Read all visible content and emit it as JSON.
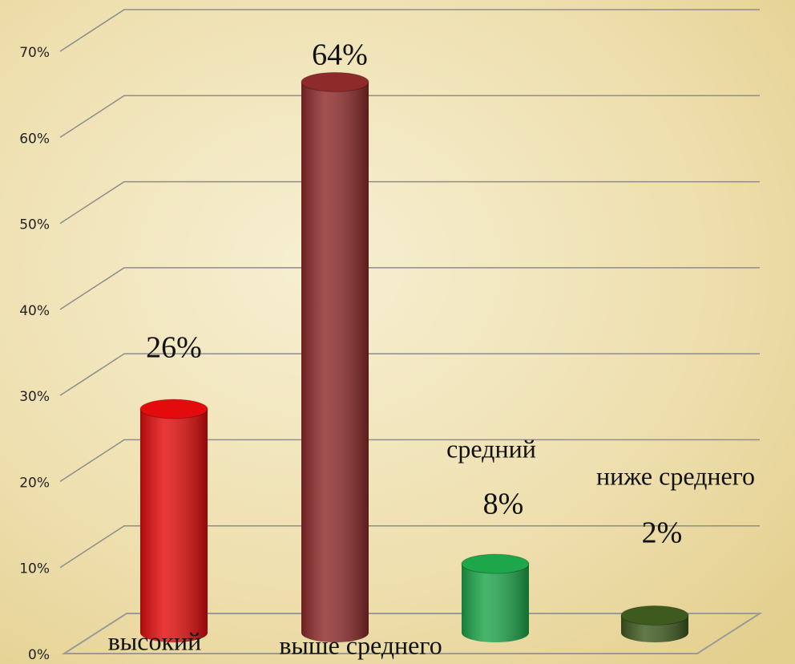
{
  "chart_data": {
    "type": "bar3d",
    "categories": [
      "высокий",
      "выше среднего",
      "средний",
      "ниже среднего"
    ],
    "values": [
      26,
      64,
      8,
      2
    ],
    "value_labels": [
      "26%",
      "64%",
      "8%",
      "2%"
    ],
    "colors": [
      "#e30b0b",
      "#8e2a2a",
      "#1da64a",
      "#3f5a1f"
    ],
    "ylim": [
      0,
      70
    ],
    "yticks": [
      {
        "value": 0,
        "label": "0%"
      },
      {
        "value": 10,
        "label": "10%"
      },
      {
        "value": 20,
        "label": "20%"
      },
      {
        "value": 30,
        "label": "30%"
      },
      {
        "value": 40,
        "label": "40%"
      },
      {
        "value": 50,
        "label": "50%"
      },
      {
        "value": 60,
        "label": "60%"
      },
      {
        "value": 70,
        "label": "70%"
      }
    ],
    "grid": true
  }
}
